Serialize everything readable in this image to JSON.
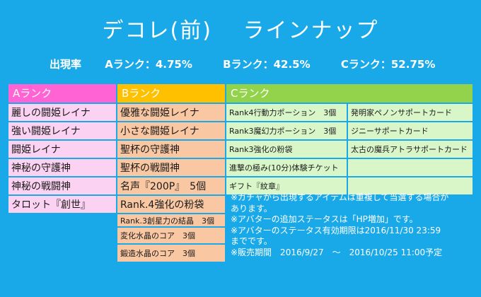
{
  "title": "デコレ(前)　 ラインナップ",
  "rates": {
    "label": "出現率",
    "a": "Aランク：4.75%",
    "b": "Bランク：42.5%",
    "c": "Cランク：52.75%"
  },
  "headers": {
    "a": "Aランク",
    "b": "Bランク",
    "c": "Cランク"
  },
  "a_items": [
    "麗しの闘姫レイナ",
    "強い闘姫レイナ",
    "闘姫レイナ",
    "神秘の守護神",
    "神秘の戦闘神",
    "タロット『創世』"
  ],
  "b_items": [
    "優雅な闘姫レイナ",
    "小さな闘姫レイナ",
    "聖杯の守護神",
    "聖杯の戦闘神",
    "名声『200P』　5個",
    "Rank.4強化の粉袋",
    "Rank.3創星力の結晶　3個",
    "変化水晶のコア　3個",
    "鍛造水晶のコア　3個"
  ],
  "c_left": [
    "Rank4行動力ポーション　3個",
    "Rank3魔幻力ポーション　3個",
    "Rank3強化の粉袋",
    "進撃の極み(10分)体験チケット",
    "ギフト『紋章』"
  ],
  "c_right": [
    "発明家ペノンサポートカード",
    "ジニーサポートカード",
    "太古の魔兵アトラサポートカード",
    "",
    ""
  ],
  "notes": [
    "※ガチャから出現するアイテムは重複して当選する場合が",
    "あります。",
    "※アバターの追加ステータスは「HP増加」です。",
    "※アバターのステータス有効期限は2016/11/30 23:59",
    "までです。",
    "※販売期間　2016/9/27　～　2016/10/25 11:00予定"
  ],
  "colors": {
    "background": "#1aa9e8",
    "a_header": "#ff63d4",
    "a_cell": "#fbd2f1",
    "b_header": "#ffc000",
    "b_cell": "#fac7a3",
    "c_header": "#93d34b",
    "c_cell": "#d9f6c9"
  }
}
